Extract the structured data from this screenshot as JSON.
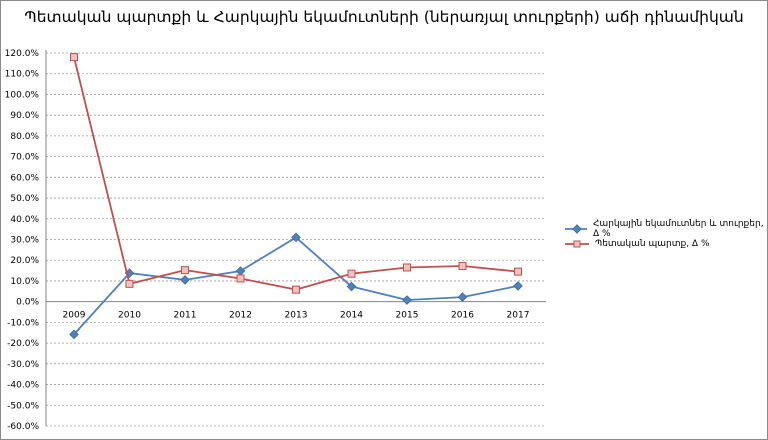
{
  "chart_data": {
    "type": "line",
    "title": "Պետական պարտքի և Հարկային եկամուտների (ներառյալ տուրքերի) աճի դինամիկան",
    "xlabel": "",
    "ylabel": "",
    "categories": [
      "2009",
      "2010",
      "2011",
      "2012",
      "2013",
      "2014",
      "2015",
      "2016",
      "2017"
    ],
    "ylim": [
      -60,
      120
    ],
    "ytick_step": 10,
    "y_tick_labels": [
      "-60.0%",
      "-50.0%",
      "-40.0%",
      "-30.0%",
      "-20.0%",
      "-10.0%",
      "0.0%",
      "10.0%",
      "20.0%",
      "30.0%",
      "40.0%",
      "50.0%",
      "60.0%",
      "70.0%",
      "80.0%",
      "90.0%",
      "100.0%",
      "110.0%",
      "120.0%"
    ],
    "grid": true,
    "legend_position": "right",
    "series": [
      {
        "name": "Հարկային եկամուտներ և տուրքեր, Δ %",
        "color": "#4f81bd",
        "marker": "diamond",
        "values": [
          -15.8,
          13.8,
          10.5,
          14.8,
          31.0,
          7.3,
          0.8,
          2.2,
          7.6
        ]
      },
      {
        "name": "Պետական պարտք, Δ %",
        "color": "#c0504d",
        "marker": "square",
        "values": [
          118.0,
          8.6,
          15.2,
          11.2,
          5.8,
          13.5,
          16.5,
          17.2,
          14.5
        ]
      }
    ]
  }
}
